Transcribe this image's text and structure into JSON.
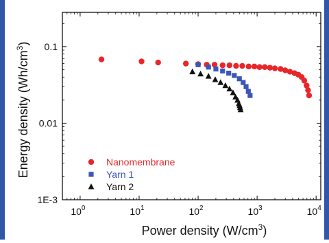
{
  "chart_data": {
    "type": "scatter",
    "xlabel": "Power density (W/cm",
    "xlabel_sup": "3",
    "xlabel_tail": ")",
    "ylabel": "Energy density (Wh/cm",
    "ylabel_sup": "3",
    "ylabel_tail": ")",
    "x_scale": "log",
    "y_scale": "log",
    "xlim": [
      0.5,
      12000
    ],
    "ylim": [
      0.001,
      0.28
    ],
    "grid": false,
    "legend_position": "bottom-left",
    "x_ticks": [
      {
        "value": 1,
        "base": "10",
        "exp": "0"
      },
      {
        "value": 10,
        "base": "10",
        "exp": "1"
      },
      {
        "value": 100,
        "base": "10",
        "exp": "2"
      },
      {
        "value": 1000,
        "base": "10",
        "exp": "3"
      },
      {
        "value": 10000,
        "base": "10",
        "exp": "4"
      }
    ],
    "y_ticks": [
      {
        "value": 0.1,
        "label": "0.1"
      },
      {
        "value": 0.01,
        "label": "0.01"
      },
      {
        "value": 0.001,
        "label": "1E-3"
      }
    ],
    "series": [
      {
        "name": "Nanomembrane",
        "marker": "circle",
        "color": "#e8262a",
        "points": [
          [
            2.3,
            0.068
          ],
          [
            11,
            0.064
          ],
          [
            21,
            0.062
          ],
          [
            62,
            0.06
          ],
          [
            100,
            0.059
          ],
          [
            140,
            0.058
          ],
          [
            190,
            0.058
          ],
          [
            260,
            0.057
          ],
          [
            340,
            0.057
          ],
          [
            440,
            0.056
          ],
          [
            560,
            0.056
          ],
          [
            720,
            0.055
          ],
          [
            900,
            0.055
          ],
          [
            1100,
            0.054
          ],
          [
            1350,
            0.054
          ],
          [
            1650,
            0.053
          ],
          [
            2000,
            0.052
          ],
          [
            2500,
            0.051
          ],
          [
            3000,
            0.049
          ],
          [
            3600,
            0.047
          ],
          [
            4300,
            0.045
          ],
          [
            5000,
            0.043
          ],
          [
            5700,
            0.04
          ],
          [
            6300,
            0.036
          ],
          [
            6900,
            0.031
          ],
          [
            7300,
            0.027
          ],
          [
            7600,
            0.023
          ]
        ]
      },
      {
        "name": "Yarn 1",
        "marker": "square",
        "color": "#3b56b8",
        "points": [
          [
            100,
            0.058
          ],
          [
            150,
            0.054
          ],
          [
            200,
            0.051
          ],
          [
            260,
            0.048
          ],
          [
            330,
            0.045
          ],
          [
            410,
            0.042
          ],
          [
            500,
            0.038
          ],
          [
            580,
            0.034
          ],
          [
            650,
            0.03
          ],
          [
            710,
            0.026
          ],
          [
            760,
            0.023
          ]
        ]
      },
      {
        "name": "Yarn 2",
        "marker": "triangle",
        "color": "#111111",
        "points": [
          [
            80,
            0.047
          ],
          [
            110,
            0.044
          ],
          [
            150,
            0.041
          ],
          [
            195,
            0.037
          ],
          [
            240,
            0.034
          ],
          [
            290,
            0.031
          ],
          [
            340,
            0.028
          ],
          [
            390,
            0.025
          ],
          [
            430,
            0.022
          ],
          [
            465,
            0.02
          ],
          [
            490,
            0.018
          ],
          [
            505,
            0.017
          ],
          [
            515,
            0.016
          ],
          [
            525,
            0.015
          ]
        ]
      }
    ]
  }
}
